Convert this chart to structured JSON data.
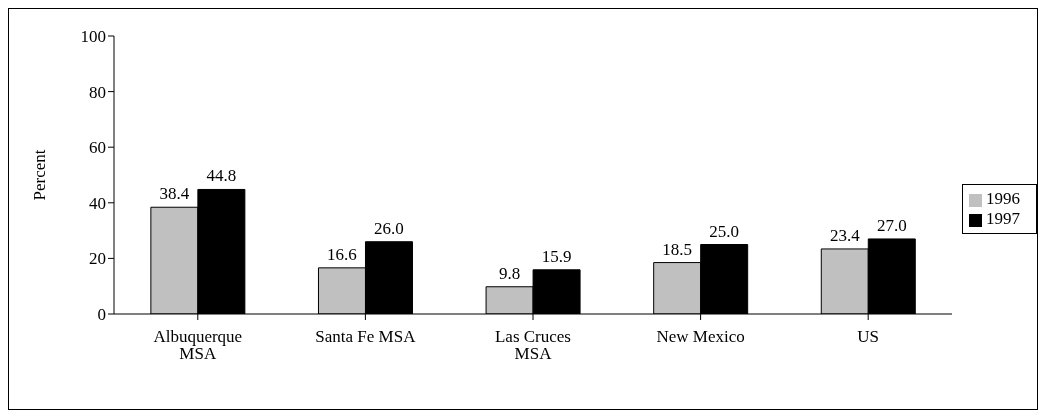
{
  "chart_data": {
    "type": "bar",
    "ylabel": "Percent",
    "categories": [
      "Albuquerque MSA",
      "Santa Fe MSA",
      "Las Cruces MSA",
      "New Mexico",
      "US"
    ],
    "series": [
      {
        "name": "1996",
        "color": "#c0c0c0",
        "values": [
          38.4,
          16.6,
          9.8,
          18.5,
          23.4
        ],
        "value_labels": [
          "38.4",
          "16.6",
          "9.8",
          "18.5",
          "23.4"
        ]
      },
      {
        "name": "1997",
        "color": "#000000",
        "values": [
          44.8,
          26.0,
          15.9,
          25.0,
          27.0
        ],
        "value_labels": [
          "44.8",
          "26.0",
          "15.9",
          "25.0",
          "27.0"
        ]
      }
    ],
    "ylim": [
      0,
      100
    ],
    "yticks": [
      0,
      20,
      40,
      60,
      80,
      100
    ],
    "grid": false,
    "legend": "right"
  }
}
